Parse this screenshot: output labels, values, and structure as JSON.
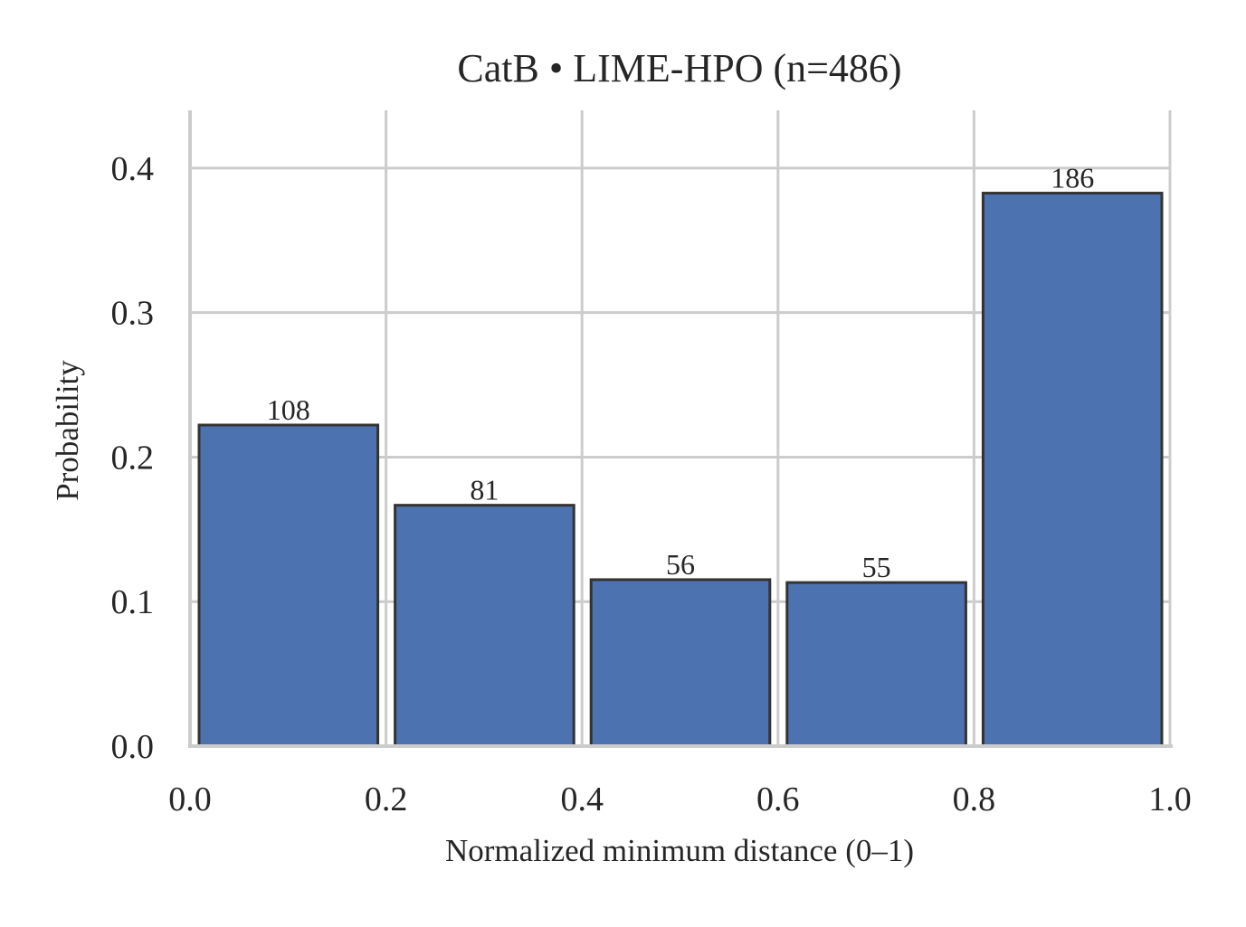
{
  "chart_data": {
    "type": "bar",
    "title": "CatB • LIME-HPO  (n=486)",
    "xlabel": "Normalized minimum distance (0–1)",
    "ylabel": "Probability",
    "bins": [
      {
        "x0": 0.0,
        "x1": 0.2,
        "value": 0.2222,
        "count_label": "108"
      },
      {
        "x0": 0.2,
        "x1": 0.4,
        "value": 0.1667,
        "count_label": "81"
      },
      {
        "x0": 0.4,
        "x1": 0.6,
        "value": 0.1152,
        "count_label": "56"
      },
      {
        "x0": 0.6,
        "x1": 0.8,
        "value": 0.1132,
        "count_label": "55"
      },
      {
        "x0": 0.8,
        "x1": 1.0,
        "value": 0.3827,
        "count_label": "186"
      }
    ],
    "xlim": [
      0.0,
      1.0
    ],
    "ylim": [
      0.0,
      0.44
    ],
    "xticks": [
      "0.0",
      "0.2",
      "0.4",
      "0.6",
      "0.8",
      "1.0"
    ],
    "yticks": [
      "0.0",
      "0.1",
      "0.2",
      "0.3",
      "0.4"
    ],
    "grid": true,
    "bar_color": "#4c72b0",
    "bar_edge_color": "#333333",
    "grid_color": "#cccccc"
  }
}
